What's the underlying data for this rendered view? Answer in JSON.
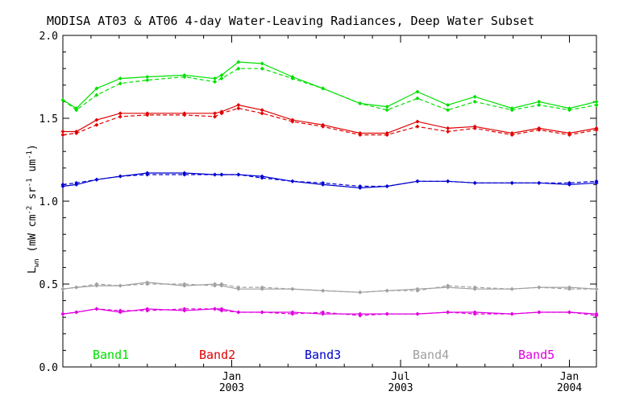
{
  "chart_data": {
    "type": "line",
    "title": "MODISA AT03 & AT06 4-day Water-Leaving Radiances, Deep Water Subset",
    "ylabel": {
      "base": "L",
      "sub": "wn",
      "text": "(mW cm",
      "sup1": "-2",
      "mid": " sr",
      "sup2": "-1",
      "mid2": " um",
      "sup3": "-1",
      "close": ")"
    },
    "xlim": [
      2002.5,
      2004.08
    ],
    "ylim": [
      0,
      2.0
    ],
    "yticks": [
      {
        "value": 0.0,
        "label": "0.0"
      },
      {
        "value": 0.5,
        "label": "0.5"
      },
      {
        "value": 1.0,
        "label": "1.0"
      },
      {
        "value": 1.5,
        "label": "1.5"
      },
      {
        "value": 2.0,
        "label": "2.0"
      }
    ],
    "xticks": [
      {
        "value": 2003.0,
        "label": "Jan",
        "year": "2003"
      },
      {
        "value": 2003.5,
        "label": "Jul",
        "year": "2003"
      },
      {
        "value": 2004.0,
        "label": "Jan",
        "year": "2004"
      }
    ],
    "grid": false,
    "legend_position": "bottom",
    "x": [
      2002.5,
      2002.54,
      2002.6,
      2002.67,
      2002.75,
      2002.86,
      2002.95,
      2002.97,
      2003.02,
      2003.09,
      2003.18,
      2003.27,
      2003.38,
      2003.46,
      2003.55,
      2003.64,
      2003.72,
      2003.83,
      2003.91,
      2004.0,
      2004.08
    ],
    "series": [
      {
        "name": "Band1",
        "color": "#00e000",
        "solid": [
          1.61,
          1.56,
          1.68,
          1.74,
          1.75,
          1.76,
          1.74,
          1.76,
          1.84,
          1.83,
          1.75,
          1.68,
          1.59,
          1.57,
          1.66,
          1.58,
          1.63,
          1.56,
          1.6,
          1.56,
          1.6
        ],
        "dashed": [
          1.61,
          1.55,
          1.64,
          1.71,
          1.73,
          1.75,
          1.72,
          1.74,
          1.8,
          1.8,
          1.74,
          1.68,
          1.59,
          1.55,
          1.62,
          1.55,
          1.6,
          1.55,
          1.58,
          1.55,
          1.58
        ]
      },
      {
        "name": "Band2",
        "color": "#e00000",
        "solid": [
          1.42,
          1.42,
          1.49,
          1.53,
          1.53,
          1.53,
          1.53,
          1.54,
          1.58,
          1.55,
          1.49,
          1.46,
          1.41,
          1.41,
          1.48,
          1.44,
          1.45,
          1.41,
          1.44,
          1.41,
          1.44
        ],
        "dashed": [
          1.4,
          1.41,
          1.46,
          1.51,
          1.52,
          1.52,
          1.51,
          1.53,
          1.56,
          1.53,
          1.48,
          1.45,
          1.4,
          1.4,
          1.45,
          1.42,
          1.44,
          1.4,
          1.43,
          1.4,
          1.43
        ]
      },
      {
        "name": "Band3",
        "color": "#0000d0",
        "solid": [
          1.09,
          1.1,
          1.13,
          1.15,
          1.17,
          1.17,
          1.16,
          1.16,
          1.16,
          1.15,
          1.12,
          1.1,
          1.08,
          1.09,
          1.12,
          1.12,
          1.11,
          1.11,
          1.11,
          1.1,
          1.11
        ],
        "dashed": [
          1.1,
          1.11,
          1.13,
          1.15,
          1.16,
          1.16,
          1.16,
          1.16,
          1.16,
          1.14,
          1.12,
          1.11,
          1.09,
          1.09,
          1.12,
          1.12,
          1.11,
          1.11,
          1.11,
          1.11,
          1.12
        ]
      },
      {
        "name": "Band4",
        "color": "#a0a0a0",
        "solid": [
          0.47,
          0.48,
          0.49,
          0.49,
          0.51,
          0.49,
          0.5,
          0.49,
          0.47,
          0.47,
          0.47,
          0.46,
          0.45,
          0.46,
          0.47,
          0.48,
          0.47,
          0.47,
          0.48,
          0.48,
          0.47
        ],
        "dashed": [
          0.47,
          0.48,
          0.5,
          0.49,
          0.5,
          0.5,
          0.49,
          0.5,
          0.48,
          0.48,
          0.47,
          0.46,
          0.45,
          0.46,
          0.46,
          0.49,
          0.48,
          0.47,
          0.48,
          0.47,
          0.47
        ]
      },
      {
        "name": "Band5",
        "color": "#e000e0",
        "solid": [
          0.32,
          0.33,
          0.35,
          0.33,
          0.35,
          0.34,
          0.35,
          0.35,
          0.33,
          0.33,
          0.33,
          0.32,
          0.32,
          0.32,
          0.32,
          0.33,
          0.33,
          0.32,
          0.33,
          0.33,
          0.32
        ],
        "dashed": [
          0.32,
          0.33,
          0.35,
          0.34,
          0.34,
          0.35,
          0.35,
          0.34,
          0.33,
          0.33,
          0.32,
          0.33,
          0.31,
          0.32,
          0.32,
          0.33,
          0.32,
          0.32,
          0.33,
          0.33,
          0.31
        ]
      }
    ]
  }
}
